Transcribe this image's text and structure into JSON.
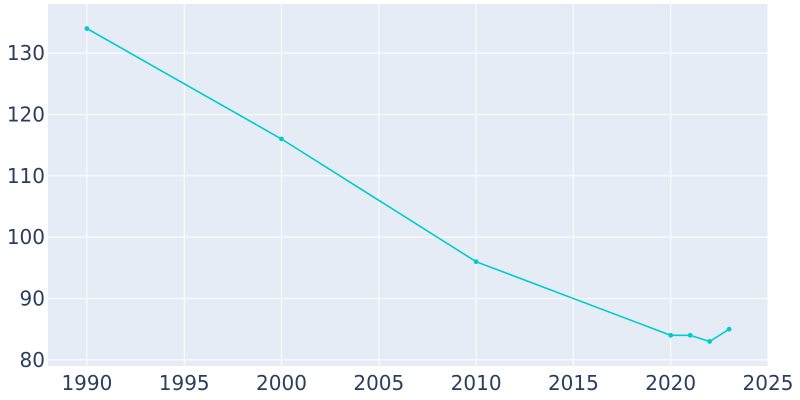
{
  "chart_data": {
    "type": "line",
    "title": "",
    "xlabel": "",
    "ylabel": "",
    "xlim": [
      1988,
      2025
    ],
    "ylim": [
      79,
      138
    ],
    "x_ticks": [
      1990,
      1995,
      2000,
      2005,
      2010,
      2015,
      2020,
      2025
    ],
    "y_ticks": [
      80,
      90,
      100,
      110,
      120,
      130
    ],
    "grid": true,
    "legend": "none",
    "series": [
      {
        "x": [
          1990,
          2000,
          2010,
          2020,
          2021,
          2022,
          2023
        ],
        "values": [
          134,
          116,
          96,
          84,
          84,
          83,
          85
        ]
      }
    ]
  },
  "colors": {
    "plot_background": "#e5ecf6",
    "grid": "#ffffff",
    "line": "#00cccc",
    "tick_text": "#2a3f5f"
  }
}
